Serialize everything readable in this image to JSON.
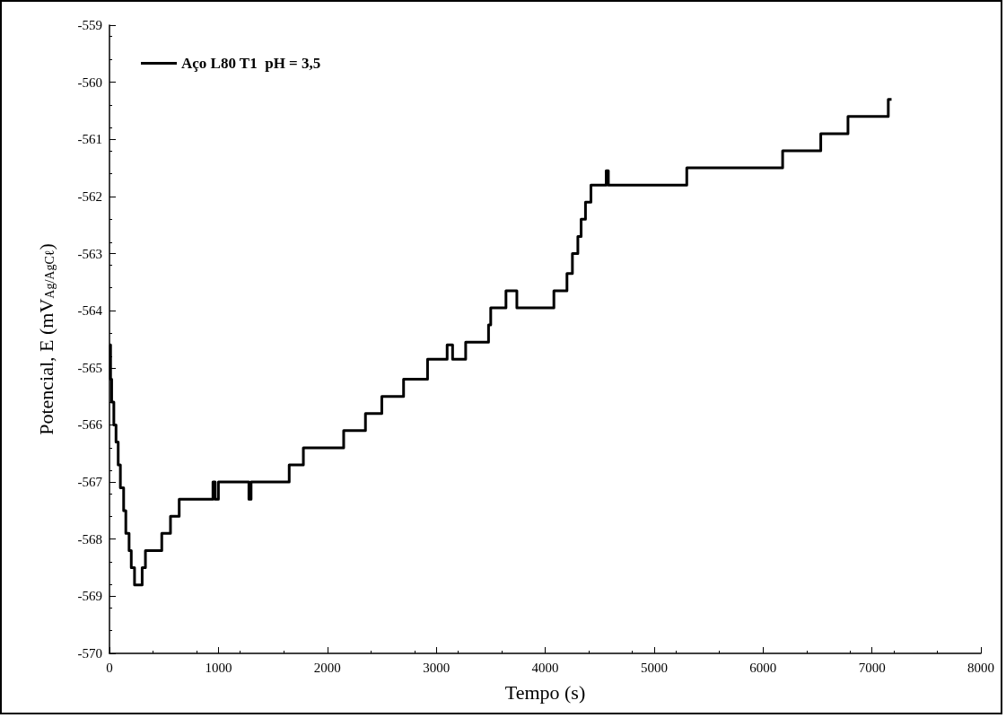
{
  "chart_data": {
    "type": "step",
    "xlabel": "Tempo (s)",
    "ylabel": "Potencial, E (mV$_{Ag/AgCℓ}$)",
    "xlim": [
      0,
      8000
    ],
    "xticks": [
      0,
      1000,
      2000,
      3000,
      4000,
      5000,
      6000,
      7000,
      8000
    ],
    "ylim": [
      -570,
      -559
    ],
    "yticks": [
      -570,
      -569,
      -568,
      -567,
      -566,
      -565,
      -564,
      -563,
      -562,
      -561,
      -560,
      -559
    ],
    "grid": false,
    "legend": "top left",
    "marker": "none",
    "line_style": "solid",
    "series": [
      {
        "name": "Aço L80 T1  pH = 3,5",
        "color": "#000000",
        "x": [
          0,
          10,
          20,
          40,
          60,
          80,
          100,
          130,
          150,
          180,
          200,
          230,
          300,
          330,
          480,
          560,
          640,
          950,
          970,
          1000,
          1280,
          1300,
          1650,
          1780,
          2150,
          2350,
          2500,
          2700,
          2920,
          3100,
          3150,
          3270,
          3480,
          3500,
          3640,
          3740,
          4080,
          4200,
          4250,
          4300,
          4330,
          4370,
          4420,
          4560,
          4580,
          5300,
          6180,
          6530,
          6780,
          7150,
          7180
        ],
        "values": [
          -564.6,
          -565.2,
          -565.6,
          -566.0,
          -566.3,
          -566.7,
          -567.1,
          -567.5,
          -567.9,
          -568.2,
          -568.5,
          -568.8,
          -568.5,
          -568.2,
          -567.9,
          -567.6,
          -567.3,
          -567.0,
          -567.3,
          -567.0,
          -567.3,
          -567.0,
          -566.7,
          -566.4,
          -566.1,
          -565.8,
          -565.5,
          -565.2,
          -564.85,
          -564.6,
          -564.85,
          -564.55,
          -564.25,
          -563.95,
          -563.65,
          -563.95,
          -563.65,
          -563.35,
          -563.0,
          -562.7,
          -562.4,
          -562.1,
          -561.8,
          -561.55,
          -561.8,
          -561.5,
          -561.2,
          -560.9,
          -560.6,
          -560.3,
          -560.3
        ]
      }
    ]
  }
}
